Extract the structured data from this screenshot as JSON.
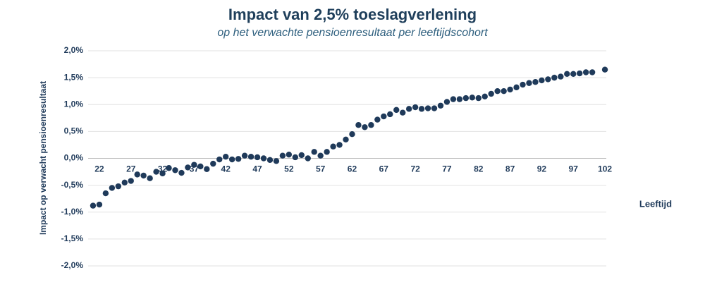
{
  "chart_data": {
    "type": "scatter",
    "title": "Impact van 2,5% toeslagverlening",
    "subtitle": "op het verwachte pensioenresultaat per leeftijdscohort",
    "y_label": "Impact op verwacht pensioenresultaat",
    "x_label": "Leeftijd",
    "color": "#1f3a5a",
    "x": [
      21,
      22,
      23,
      24,
      25,
      26,
      27,
      28,
      29,
      30,
      31,
      32,
      33,
      34,
      35,
      36,
      37,
      38,
      39,
      40,
      41,
      42,
      43,
      44,
      45,
      46,
      47,
      48,
      49,
      50,
      51,
      52,
      53,
      54,
      55,
      56,
      57,
      58,
      59,
      60,
      61,
      62,
      63,
      64,
      65,
      66,
      67,
      68,
      69,
      70,
      71,
      72,
      73,
      74,
      75,
      76,
      77,
      78,
      79,
      80,
      81,
      82,
      83,
      84,
      85,
      86,
      87,
      88,
      89,
      90,
      91,
      92,
      93,
      94,
      95,
      96,
      97,
      98,
      99,
      100,
      102
    ],
    "values": [
      -0.88,
      -0.86,
      -0.65,
      -0.55,
      -0.52,
      -0.45,
      -0.42,
      -0.3,
      -0.32,
      -0.37,
      -0.25,
      -0.28,
      -0.18,
      -0.22,
      -0.27,
      -0.17,
      -0.12,
      -0.15,
      -0.2,
      -0.1,
      -0.02,
      0.03,
      -0.02,
      -0.01,
      0.05,
      0.03,
      0.02,
      0.0,
      -0.03,
      -0.05,
      0.05,
      0.07,
      0.02,
      0.06,
      0.0,
      0.12,
      0.05,
      0.12,
      0.22,
      0.25,
      0.35,
      0.45,
      0.62,
      0.58,
      0.62,
      0.72,
      0.78,
      0.82,
      0.9,
      0.85,
      0.92,
      0.95,
      0.92,
      0.93,
      0.93,
      0.98,
      1.05,
      1.1,
      1.1,
      1.12,
      1.13,
      1.12,
      1.15,
      1.2,
      1.25,
      1.25,
      1.28,
      1.32,
      1.37,
      1.4,
      1.42,
      1.45,
      1.47,
      1.5,
      1.52,
      1.57,
      1.57,
      1.58,
      1.6,
      1.6,
      1.65
    ],
    "xlim": [
      20,
      103
    ],
    "xticks": [
      22,
      27,
      32,
      37,
      42,
      47,
      52,
      57,
      62,
      67,
      72,
      77,
      82,
      87,
      92,
      97,
      102
    ],
    "ylim": [
      -2.0,
      2.0
    ],
    "yticks": [
      {
        "value": 2.0,
        "label": "2,0%"
      },
      {
        "value": 1.5,
        "label": "1,5%"
      },
      {
        "value": 1.0,
        "label": "1,0%"
      },
      {
        "value": 0.5,
        "label": "0,5%"
      },
      {
        "value": 0.0,
        "label": "0,0%"
      },
      {
        "value": -0.5,
        "label": "-0,5%"
      },
      {
        "value": -1.0,
        "label": "-1,0%"
      },
      {
        "value": -1.5,
        "label": "-1,5%"
      },
      {
        "value": -2.0,
        "label": "-2,0%"
      }
    ],
    "grid": true
  }
}
